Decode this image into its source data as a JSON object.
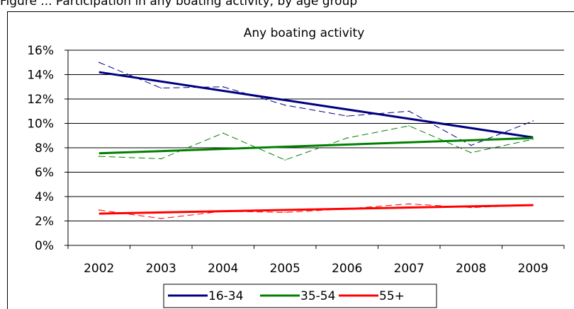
{
  "caption_fragment": "Figure ... Participation in any boating activity, by age group",
  "chart_data": {
    "type": "line",
    "title": "Any boating activity",
    "xlabel": "",
    "ylabel": "",
    "categories": [
      "2002",
      "2003",
      "2004",
      "2005",
      "2006",
      "2007",
      "2008",
      "2009"
    ],
    "ylim": [
      0,
      16
    ],
    "y_ticks": [
      "0%",
      "2%",
      "4%",
      "6%",
      "8%",
      "10%",
      "12%",
      "14%",
      "16%"
    ],
    "grid": "horizontal",
    "legend_position": "bottom",
    "series": [
      {
        "name": "16-34",
        "color": "#000080",
        "values": [
          15.0,
          12.9,
          13.0,
          11.5,
          10.6,
          11.0,
          8.2,
          10.2
        ],
        "trend": [
          14.2,
          8.85
        ]
      },
      {
        "name": "35-54",
        "color": "#008000",
        "values": [
          7.3,
          7.1,
          9.2,
          7.0,
          8.8,
          9.8,
          7.6,
          8.7
        ],
        "trend": [
          7.55,
          8.8
        ]
      },
      {
        "name": "55+",
        "color": "#ff0000",
        "values": [
          2.9,
          2.2,
          2.8,
          2.7,
          3.0,
          3.4,
          3.1,
          3.3
        ],
        "trend": [
          2.6,
          3.3
        ]
      }
    ]
  }
}
